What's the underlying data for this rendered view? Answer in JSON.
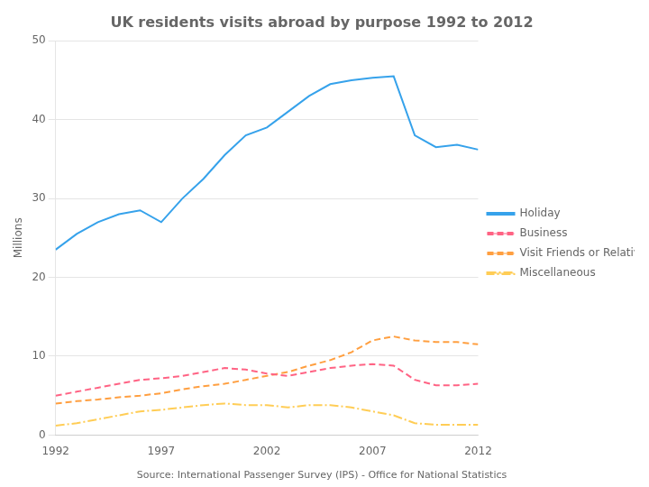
{
  "chart_data": {
    "type": "line",
    "title": "UK residents visits abroad by purpose 1992 to 2012",
    "source": "Source: International Passenger Survey (IPS) - Office for National Statistics",
    "ylabel": "Millions",
    "x": [
      1992,
      1993,
      1994,
      1995,
      1996,
      1997,
      1998,
      1999,
      2000,
      2001,
      2002,
      2003,
      2004,
      2005,
      2006,
      2007,
      2008,
      2009,
      2010,
      2011,
      2012
    ],
    "series": [
      {
        "name": "Holiday",
        "line_style": "solid",
        "values": [
          23.5,
          25.5,
          27.0,
          28.0,
          28.5,
          27.0,
          30.0,
          32.5,
          35.5,
          38.0,
          39.0,
          41.0,
          43.0,
          44.5,
          45.0,
          45.3,
          45.5,
          38.0,
          36.5,
          36.8,
          36.2
        ]
      },
      {
        "name": "Business",
        "line_style": "dashed",
        "values": [
          5.0,
          5.5,
          6.0,
          6.5,
          7.0,
          7.2,
          7.5,
          8.0,
          8.5,
          8.3,
          7.8,
          7.5,
          8.0,
          8.5,
          8.8,
          9.0,
          8.8,
          7.0,
          6.3,
          6.3,
          6.5
        ]
      },
      {
        "name": "Visit Friends or Relatives",
        "line_style": "dashed",
        "values": [
          4.0,
          4.3,
          4.5,
          4.8,
          5.0,
          5.3,
          5.8,
          6.2,
          6.5,
          7.0,
          7.5,
          8.0,
          8.8,
          9.5,
          10.5,
          12.0,
          12.5,
          12.0,
          11.8,
          11.8,
          11.5
        ]
      },
      {
        "name": "Miscellaneous",
        "line_style": "dashdot",
        "values": [
          1.2,
          1.5,
          2.0,
          2.5,
          3.0,
          3.2,
          3.5,
          3.8,
          4.0,
          3.8,
          3.8,
          3.5,
          3.8,
          3.8,
          3.5,
          3.0,
          2.5,
          1.5,
          1.3,
          1.3,
          1.3
        ]
      }
    ],
    "xlim": [
      1992,
      2012
    ],
    "xticks": [
      1992,
      1997,
      2002,
      2007,
      2012
    ],
    "ylim": [
      0,
      50
    ],
    "yticks": [
      0,
      10,
      20,
      30,
      40,
      50
    ],
    "grid": "y",
    "legend": "right"
  }
}
